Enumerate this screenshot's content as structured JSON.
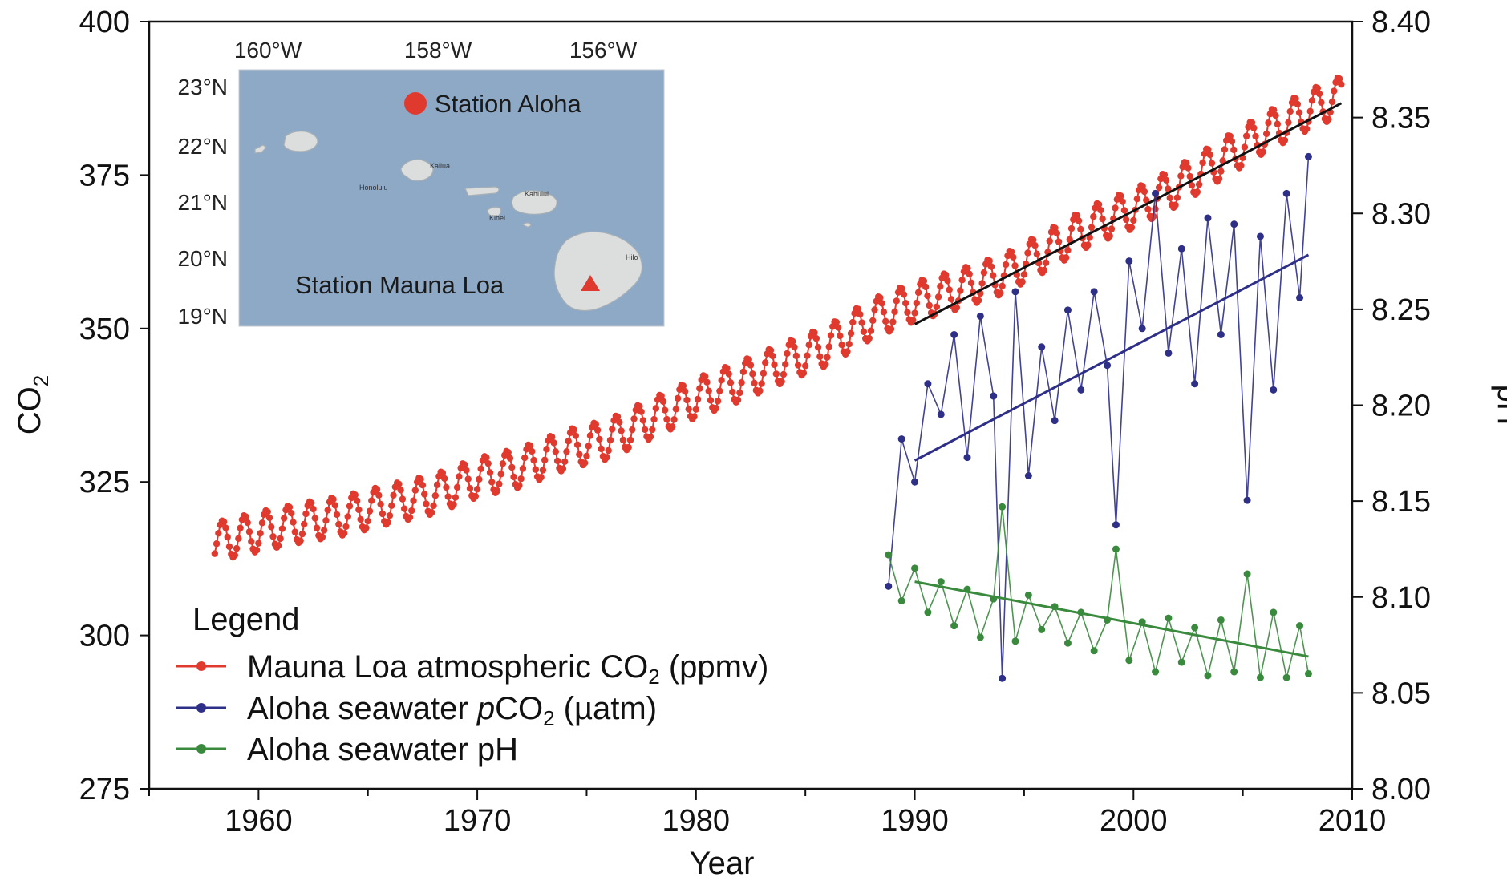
{
  "chart_data": {
    "type": "line",
    "xlabel": "Year",
    "ylabel_left": "CO",
    "ylabel_left_sub": "2",
    "ylabel_right": "pH",
    "xlim": [
      1955,
      2010
    ],
    "ylim_left": [
      275,
      400
    ],
    "ylim_right": [
      8.0,
      8.4
    ],
    "x_ticks": [
      1960,
      1970,
      1980,
      1990,
      2000,
      2010
    ],
    "x_tick_labels": [
      "1960",
      "1970",
      "1980",
      "1990",
      "2000",
      "2010"
    ],
    "y_left_ticks": [
      275,
      300,
      325,
      350,
      375,
      400
    ],
    "y_left_tick_labels": [
      "275",
      "300",
      "325",
      "350",
      "375",
      "400"
    ],
    "y_right_ticks": [
      8.0,
      8.05,
      8.1,
      8.15,
      8.2,
      8.25,
      8.3,
      8.35,
      8.4
    ],
    "y_right_tick_labels": [
      "8.00",
      "8.05",
      "8.10",
      "8.15",
      "8.20",
      "8.25",
      "8.30",
      "8.35",
      "8.40"
    ],
    "legend": {
      "title": "Legend",
      "placement": "bottom-left",
      "entries": [
        {
          "pre": "Mauna Loa atmospheric CO",
          "sub": "2",
          "post": " (ppmv)",
          "color": "#e03a2f"
        },
        {
          "pre": "Aloha seawater ",
          "italic": "p",
          "mid": "CO",
          "sub": "2",
          "post": " (µatm)",
          "color": "#2e2f86"
        },
        {
          "pre": "Aloha seawater pH",
          "color": "#3a8a3e"
        }
      ]
    },
    "series": [
      {
        "name": "Mauna Loa atmospheric CO2 (ppmv)",
        "axis": "left",
        "color": "#e03a2f",
        "x": [
          1958.0,
          1960.0,
          1962.0,
          1964.0,
          1966.0,
          1968.0,
          1970.0,
          1972.0,
          1974.0,
          1976.0,
          1978.0,
          1980.0,
          1982.0,
          1984.0,
          1986.0,
          1988.0,
          1990.0,
          1992.0,
          1994.0,
          1996.0,
          1998.0,
          2000.0,
          2002.0,
          2004.0,
          2006.0,
          2008.0,
          2009.5
        ],
        "y": [
          315.2,
          316.9,
          318.4,
          319.6,
          321.4,
          323.0,
          325.7,
          327.4,
          330.2,
          332.0,
          335.4,
          338.7,
          341.4,
          344.4,
          347.2,
          351.5,
          354.4,
          356.4,
          358.8,
          362.6,
          366.7,
          369.5,
          373.2,
          377.5,
          381.9,
          385.6,
          387.9
        ],
        "seasonal_amplitude": 3.2,
        "trend_line": {
          "x": [
            1990.0,
            2009.5
          ],
          "y": [
            350.7,
            386.7
          ],
          "color": "#111111"
        }
      },
      {
        "name": "Aloha seawater pCO2 (µatm)",
        "axis": "left",
        "color": "#2e2f86",
        "x": [
          1988.8,
          1989.4,
          1990.0,
          1990.6,
          1991.2,
          1991.8,
          1992.4,
          1993.0,
          1993.6,
          1994.0,
          1994.6,
          1995.2,
          1995.8,
          1996.4,
          1997.0,
          1997.6,
          1998.2,
          1998.8,
          1999.2,
          1999.8,
          2000.4,
          2001.0,
          2001.6,
          2002.2,
          2002.8,
          2003.4,
          2004.0,
          2004.6,
          2005.2,
          2005.8,
          2006.4,
          2007.0,
          2007.6,
          2008.0
        ],
        "y": [
          308.0,
          332.0,
          325.0,
          341.0,
          336.0,
          349.0,
          329.0,
          352.0,
          339.0,
          293.0,
          356.0,
          326.0,
          347.0,
          335.0,
          353.0,
          340.0,
          356.0,
          344.0,
          318.0,
          361.0,
          350.0,
          372.0,
          346.0,
          363.0,
          341.0,
          368.0,
          349.0,
          367.0,
          322.0,
          365.0,
          340.0,
          372.0,
          355.0,
          378.0
        ],
        "trend_line": {
          "x": [
            1990.0,
            2008.0
          ],
          "y": [
            328.5,
            362.0
          ],
          "color": "#2e2f86"
        }
      },
      {
        "name": "Aloha seawater pH",
        "axis": "right",
        "color": "#3a8a3e",
        "x": [
          1988.8,
          1989.4,
          1990.0,
          1990.6,
          1991.2,
          1991.8,
          1992.4,
          1993.0,
          1993.6,
          1994.0,
          1994.6,
          1995.2,
          1995.8,
          1996.4,
          1997.0,
          1997.6,
          1998.2,
          1998.8,
          1999.2,
          1999.8,
          2000.4,
          2001.0,
          2001.6,
          2002.2,
          2002.8,
          2003.4,
          2004.0,
          2004.6,
          2005.2,
          2005.8,
          2006.4,
          2007.0,
          2007.6,
          2008.0
        ],
        "y": [
          8.122,
          8.098,
          8.115,
          8.092,
          8.108,
          8.085,
          8.104,
          8.079,
          8.099,
          8.147,
          8.077,
          8.101,
          8.083,
          8.095,
          8.076,
          8.092,
          8.072,
          8.088,
          8.125,
          8.067,
          8.087,
          8.061,
          8.089,
          8.066,
          8.084,
          8.059,
          8.088,
          8.061,
          8.112,
          8.058,
          8.092,
          8.058,
          8.085,
          8.06
        ],
        "trend_line": {
          "x": [
            1990.0,
            2008.0
          ],
          "y": [
            8.108,
            8.069
          ],
          "color": "#3a8a3e"
        }
      }
    ]
  },
  "inset_map": {
    "lon_labels": [
      "160°W",
      "158°W",
      "156°W"
    ],
    "lat_labels": [
      "23°N",
      "22°N",
      "21°N",
      "20°N",
      "19°N"
    ],
    "stations": [
      {
        "name": "Station Aloha",
        "marker": "circle",
        "color": "#e03a2f"
      },
      {
        "name": "Station Mauna Loa",
        "marker": "triangle",
        "color": "#e03a2f"
      }
    ],
    "towns": [
      "Honolulu",
      "Kailua",
      "Kahului",
      "Kihei",
      "Hilo"
    ],
    "sea_color": "#8ea9c6",
    "land_color": "#dcdedd"
  }
}
